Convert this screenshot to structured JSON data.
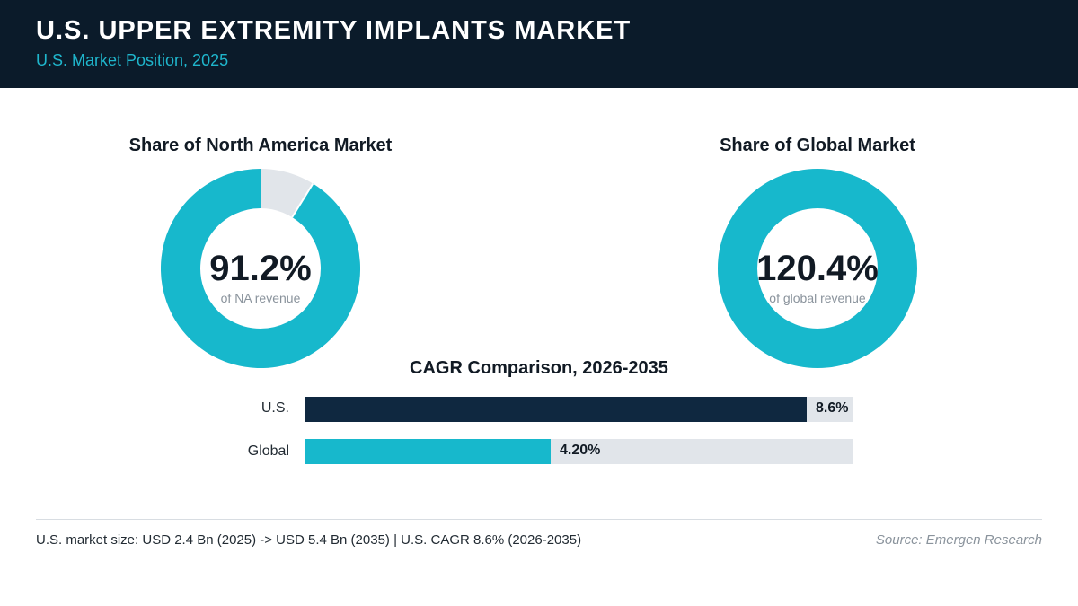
{
  "header": {
    "title": "U.S. UPPER EXTREMITY IMPLANTS MARKET",
    "subtitle": "U.S. Market Position, 2025"
  },
  "colors": {
    "header_bg": "#0b1b2a",
    "accent_teal": "#17b8cc",
    "dark_navy": "#0f2840",
    "track_gray": "#e1e5ea"
  },
  "chart_data": [
    {
      "type": "pie",
      "title": "Share of North America Market",
      "value_label": "91.2%",
      "caption": "of NA revenue",
      "values": [
        91.2,
        8.8
      ],
      "colors": [
        "#17b8cc",
        "#e1e5ea"
      ]
    },
    {
      "type": "pie",
      "title": "Share of Global Market",
      "value_label": "120.4%",
      "caption": "of global revenue",
      "values": [
        120.4,
        0
      ],
      "colors": [
        "#17b8cc",
        "#e1e5ea"
      ]
    },
    {
      "type": "bar",
      "title": "CAGR Comparison, 2026-2035",
      "categories": [
        "U.S.",
        "Global"
      ],
      "values": [
        8.6,
        4.2
      ],
      "value_labels": [
        "8.6%",
        "4.20%"
      ],
      "colors": [
        "#0f2840",
        "#17b8cc"
      ],
      "xlim": [
        0,
        9.4
      ]
    }
  ],
  "footer": {
    "note": "U.S. market size: USD 2.4 Bn (2025) -> USD 5.4 Bn (2035)  |  U.S. CAGR 8.6% (2026-2035)",
    "source": "Source: Emergen Research"
  }
}
